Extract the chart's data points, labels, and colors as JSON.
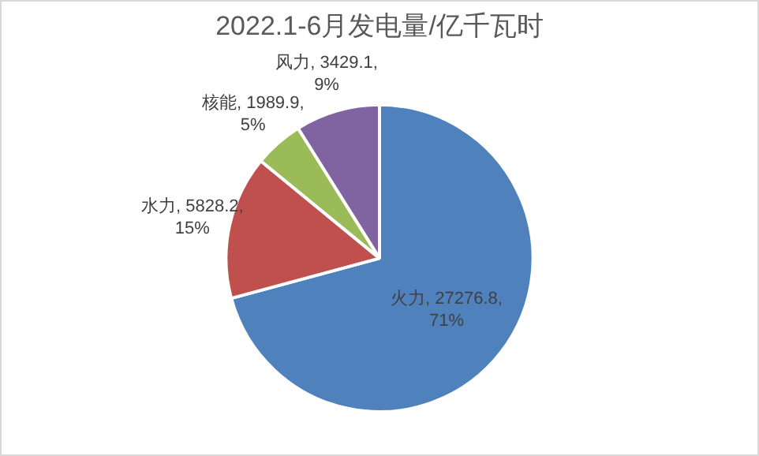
{
  "chart_data": {
    "type": "pie",
    "title": "2022.1-6月发电量/亿千瓦时",
    "categories": [
      "火力",
      "水力",
      "核能",
      "风力"
    ],
    "values": [
      27276.8,
      5828.2,
      1989.9,
      3429.1
    ],
    "colors": [
      "#4f81bd",
      "#c0504d",
      "#9bbb59",
      "#8064a2"
    ],
    "value_labels": [
      "27276.8, 71%",
      "5828.2, 15%",
      "1989.9, 5%",
      "3429.1, 9%"
    ],
    "legend": false
  }
}
